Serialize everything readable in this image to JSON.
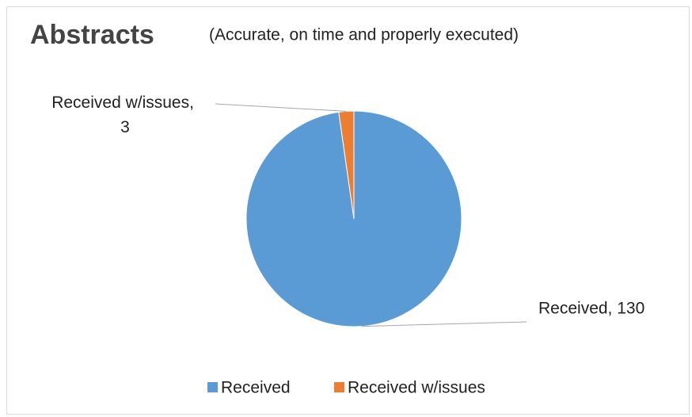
{
  "chart_data": {
    "type": "pie",
    "title": "Abstracts",
    "subtitle": "(Accurate, on time and properly executed)",
    "categories": [
      "Received",
      "Received w/issues"
    ],
    "values": [
      130,
      3
    ],
    "value_labels": [
      "Received, 130",
      "Received w/issues, 3"
    ],
    "colors": [
      "#5b9bd5",
      "#ed7d31"
    ],
    "legend": "bottom"
  }
}
